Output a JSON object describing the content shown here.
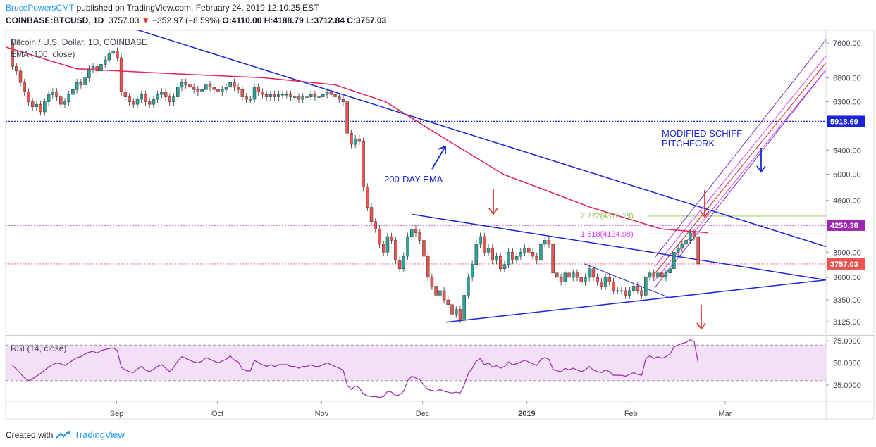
{
  "header": {
    "author": "BrucePowersCMT",
    "published": "published on TradingView.com, February 24, 2019 12:10:25 EST",
    "symbol": "COINBASE:BTCUSD, 1D",
    "last": "3757.03",
    "arrow": "▼",
    "change": "−352.97 (−8.59%)",
    "ohlc": "O:4110.00 H:4188.79 L:3712.84 C:3757.03"
  },
  "legend": {
    "title": "Bitcoin / U.S. Dollar, 1D, COINBASE",
    "ema": "EMA (100, close)",
    "rsi": "RSI (14, close)"
  },
  "annotations": {
    "ema_label": "200-DAY EMA",
    "pitchfork_line1": "MODIFIED SCHIFF",
    "pitchfork_line2": "PITCHFORK",
    "fib1": "1.618(4134.08)",
    "fib2": "2.272(4376.19)"
  },
  "price_badges": [
    "5918.69",
    "4250.38",
    "3757.03"
  ],
  "footer": {
    "created": "Created with",
    "brand": "TradingView"
  },
  "colors": {
    "up": "#26a69a",
    "down": "#ef5350",
    "ema": "#e0245e",
    "trendline": "#1a26d6",
    "hline_blue": "#1a26d6",
    "hline_purple": "#9c27b0",
    "pitchfork": "#7b2fbe",
    "pitchfork_inner": "#e040fb",
    "pitchfork_median": "#c62828",
    "rsi_line": "#9c27b0",
    "rsi_band": "#f3e0f7",
    "badge_blue": "#1a26d6",
    "badge_purple": "#9c27b0",
    "badge_red": "#ef5350",
    "fib_green": "#8bc34a",
    "fib_pink": "#e040fb"
  },
  "chart_data": [
    {
      "type": "candlestick",
      "title": "Bitcoin / U.S. Dollar, 1D, COINBASE",
      "y_scale": "log",
      "y_ticks": [
        3125,
        3350,
        3600,
        3900,
        4250,
        4600,
        5000,
        5400,
        5900,
        6300,
        6800,
        7600
      ],
      "y_tick_labels": [
        "3125.00",
        "3350.00",
        "3600.00",
        "3900.00",
        "4250.00",
        "4600.00",
        "5000.00",
        "5400.00",
        "5900.00",
        "6300.00",
        "6800.00",
        "7600.00"
      ],
      "x_labels": [
        "Sep",
        "Oct",
        "Nov",
        "Dec",
        "2019",
        "Feb",
        "Mar"
      ],
      "x_label_dates": [
        "2018-09-01",
        "2018-10-01",
        "2018-11-01",
        "2018-12-01",
        "2019-01-01",
        "2019-02-01",
        "2019-03-01"
      ],
      "x_range": [
        "2018-07-30",
        "2019-03-31"
      ],
      "closes": [
        7050,
        6950,
        6700,
        6500,
        6300,
        6200,
        6250,
        6100,
        6300,
        6450,
        6500,
        6400,
        6250,
        6300,
        6450,
        6550,
        6700,
        6650,
        6800,
        7000,
        7050,
        6950,
        7100,
        7200,
        7350,
        7400,
        7250,
        6500,
        6400,
        6300,
        6250,
        6350,
        6450,
        6300,
        6250,
        6350,
        6450,
        6500,
        6400,
        6300,
        6400,
        6600,
        6700,
        6650,
        6600,
        6550,
        6500,
        6550,
        6650,
        6600,
        6550,
        6500,
        6550,
        6600,
        6700,
        6600,
        6550,
        6400,
        6350,
        6350,
        6600,
        6500,
        6450,
        6400,
        6450,
        6400,
        6450,
        6450,
        6450,
        6400,
        6400,
        6350,
        6400,
        6400,
        6450,
        6400,
        6400,
        6450,
        6500,
        6450,
        6400,
        6350,
        6300,
        5700,
        5500,
        5600,
        5550,
        4800,
        4500,
        4300,
        4200,
        4000,
        3900,
        4100,
        4050,
        3800,
        3700,
        3850,
        4100,
        4200,
        4150,
        4050,
        3850,
        3600,
        3500,
        3400,
        3450,
        3350,
        3300,
        3200,
        3250,
        3150,
        3400,
        3600,
        3750,
        4000,
        4100,
        3900,
        3950,
        3800,
        3850,
        3700,
        3750,
        3900,
        3800,
        3850,
        3900,
        3950,
        3900,
        3850,
        3800,
        4000,
        4050,
        4000,
        3650,
        3600,
        3550,
        3650,
        3600,
        3650,
        3600,
        3550,
        3600,
        3700,
        3600,
        3550,
        3500,
        3600,
        3550,
        3450,
        3450,
        3450,
        3400,
        3450,
        3500,
        3450,
        3400,
        3600,
        3650,
        3600,
        3650,
        3600,
        3650,
        3700,
        3900,
        3950,
        4000,
        4050,
        4150,
        4100,
        3757
      ],
      "ema": [
        {
          "date": "2018-07-30",
          "value": 7500
        },
        {
          "date": "2018-08-20",
          "value": 7000
        },
        {
          "date": "2018-09-15",
          "value": 6900
        },
        {
          "date": "2018-10-15",
          "value": 6800
        },
        {
          "date": "2018-11-05",
          "value": 6650
        },
        {
          "date": "2018-11-20",
          "value": 6300
        },
        {
          "date": "2018-12-05",
          "value": 5700
        },
        {
          "date": "2018-12-25",
          "value": 5000
        },
        {
          "date": "2019-01-20",
          "value": 4500
        },
        {
          "date": "2019-02-10",
          "value": 4200
        },
        {
          "date": "2019-02-24",
          "value": 4150
        }
      ],
      "trendlines": [
        {
          "name": "descending",
          "start": {
            "date": "2018-08-28",
            "value": 8200
          },
          "end": {
            "date": "2019-03-31",
            "value": 3970
          }
        },
        {
          "name": "triangle-top",
          "start": {
            "date": "2018-11-28",
            "value": 4400
          },
          "end": {
            "date": "2019-03-31",
            "value": 3570
          }
        },
        {
          "name": "triangle-bottom",
          "start": {
            "date": "2018-12-08",
            "value": 3120
          },
          "end": {
            "date": "2019-03-31",
            "value": 3570
          }
        }
      ],
      "horizontal_levels": [
        {
          "value": 5918.69,
          "style": "dotted",
          "color": "#1a26d6"
        },
        {
          "value": 4250.38,
          "style": "dotted",
          "color": "#9c27b0"
        },
        {
          "value": 3757.03,
          "style": "dotted",
          "color": "#ef5350"
        }
      ],
      "fib_levels": [
        {
          "label": "1.618(4134.08)",
          "value": 4134.08
        },
        {
          "label": "2.272(4376.19)",
          "value": 4376.19
        }
      ]
    },
    {
      "type": "line",
      "title": "RSI (14, close)",
      "y_ticks": [
        25,
        50,
        75
      ],
      "y_tick_labels": [
        "25.0000",
        "50.0000",
        "75.0000"
      ],
      "bands": [
        30,
        70
      ],
      "values": [
        47,
        43,
        38,
        33,
        30,
        32,
        35,
        38,
        42,
        45,
        48,
        50,
        49,
        47,
        50,
        53,
        56,
        57,
        60,
        62,
        63,
        61,
        64,
        65,
        66,
        67,
        64,
        45,
        42,
        40,
        39,
        43,
        46,
        42,
        40,
        43,
        46,
        48,
        44,
        40,
        45,
        52,
        57,
        55,
        53,
        51,
        50,
        52,
        56,
        54,
        52,
        50,
        52,
        54,
        58,
        53,
        51,
        43,
        41,
        41,
        53,
        50,
        48,
        46,
        48,
        46,
        48,
        48,
        48,
        46,
        46,
        44,
        46,
        46,
        48,
        46,
        46,
        48,
        50,
        48,
        46,
        44,
        42,
        25,
        20,
        24,
        22,
        15,
        13,
        12,
        12,
        11,
        12,
        18,
        17,
        13,
        14,
        18,
        30,
        35,
        33,
        31,
        25,
        20,
        19,
        18,
        20,
        18,
        17,
        16,
        17,
        16,
        25,
        38,
        44,
        52,
        55,
        48,
        50,
        45,
        47,
        44,
        46,
        51,
        48,
        49,
        51,
        53,
        51,
        49,
        47,
        54,
        56,
        54,
        43,
        41,
        40,
        44,
        42,
        44,
        42,
        40,
        42,
        46,
        42,
        40,
        39,
        42,
        40,
        36,
        36,
        36,
        35,
        37,
        39,
        37,
        36,
        55,
        58,
        55,
        57,
        55,
        57,
        60,
        68,
        70,
        72,
        73,
        76,
        74,
        50
      ]
    }
  ]
}
